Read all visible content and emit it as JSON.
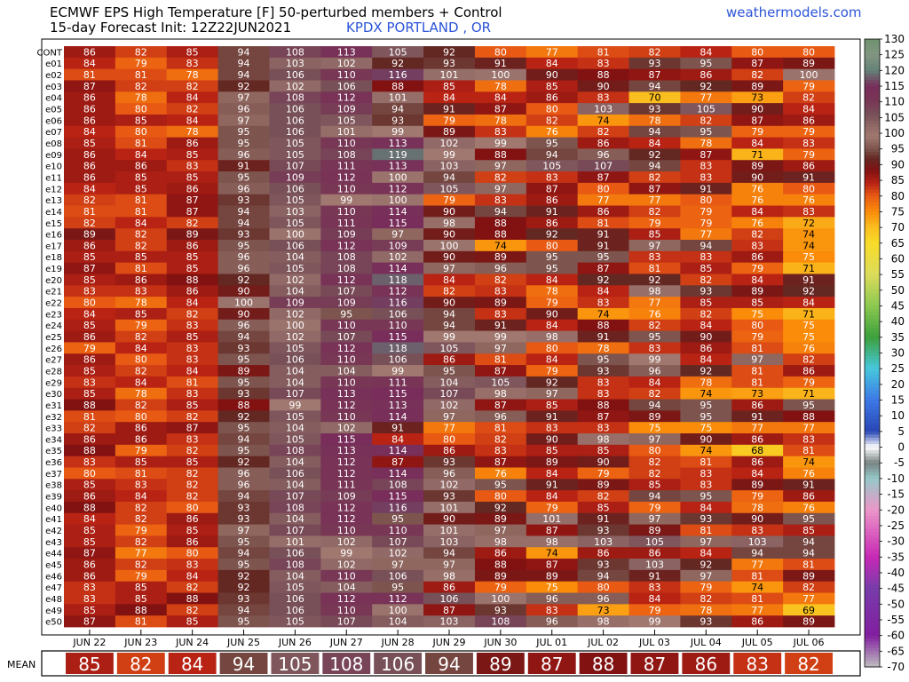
{
  "header": {
    "title_line1": "ECMWF EPS High Temperature [F]  50-perturbed members + Control",
    "title_line2": "15-day Forecast Init: 12Z22JUN2021",
    "location": "KPDX PORTLAND       , OR",
    "site": "weathermodels.com"
  },
  "chart_data": {
    "type": "heatmap",
    "title": "ECMWF EPS High Temperature [F]  50-perturbed members + Control",
    "subtitle": "15-day Forecast Init: 12Z22JUN2021",
    "columns": [
      "JUN 22",
      "JUN 23",
      "JUN 24",
      "JUN 25",
      "JUN 26",
      "JUN 27",
      "JUN 28",
      "JUN 29",
      "JUN 30",
      "JUL 01",
      "JUL 02",
      "JUL 03",
      "JUL 04",
      "JUL 05",
      "JUL 06"
    ],
    "rows": [
      "CONT",
      "e01",
      "e02",
      "e03",
      "e04",
      "e05",
      "e06",
      "e07",
      "e08",
      "e09",
      "e10",
      "e11",
      "e12",
      "e13",
      "e14",
      "e15",
      "e16",
      "e17",
      "e18",
      "e19",
      "e20",
      "e21",
      "e22",
      "e23",
      "e24",
      "e25",
      "e26",
      "e27",
      "e28",
      "e29",
      "e30",
      "e31",
      "e32",
      "e33",
      "e34",
      "e35",
      "e36",
      "e37",
      "e38",
      "e39",
      "e40",
      "e41",
      "e42",
      "e43",
      "e44",
      "e45",
      "e46",
      "e47",
      "e48",
      "e49",
      "e50"
    ],
    "values": [
      [
        86,
        82,
        85,
        94,
        108,
        113,
        105,
        92,
        80,
        77,
        81,
        82,
        84,
        80,
        80
      ],
      [
        84,
        79,
        83,
        94,
        103,
        102,
        92,
        93,
        91,
        84,
        83,
        93,
        95,
        87,
        89
      ],
      [
        81,
        81,
        78,
        94,
        106,
        110,
        116,
        101,
        100,
        90,
        88,
        87,
        86,
        82,
        100
      ],
      [
        87,
        82,
        82,
        92,
        102,
        106,
        88,
        85,
        78,
        85,
        90,
        94,
        92,
        89,
        79
      ],
      [
        86,
        78,
        84,
        97,
        108,
        112,
        101,
        84,
        84,
        86,
        83,
        70,
        77,
        73,
        82
      ],
      [
        86,
        80,
        82,
        96,
        106,
        109,
        94,
        91,
        87,
        80,
        103,
        93,
        105,
        90,
        84
      ],
      [
        86,
        85,
        84,
        97,
        106,
        105,
        93,
        79,
        78,
        82,
        74,
        78,
        82,
        87,
        86
      ],
      [
        84,
        80,
        78,
        95,
        106,
        101,
        99,
        89,
        83,
        76,
        82,
        94,
        95,
        79,
        79
      ],
      [
        85,
        81,
        86,
        95,
        105,
        110,
        113,
        102,
        99,
        95,
        86,
        84,
        78,
        84,
        83
      ],
      [
        86,
        84,
        85,
        96,
        105,
        108,
        119,
        99,
        88,
        94,
        96,
        92,
        87,
        71,
        79
      ],
      [
        86,
        86,
        83,
        91,
        107,
        111,
        113,
        103,
        97,
        105,
        107,
        94,
        83,
        89,
        86
      ],
      [
        86,
        85,
        85,
        95,
        109,
        112,
        100,
        94,
        82,
        83,
        87,
        82,
        83,
        90,
        91
      ],
      [
        84,
        85,
        86,
        96,
        106,
        110,
        112,
        105,
        97,
        87,
        80,
        87,
        91,
        76,
        80
      ],
      [
        82,
        81,
        87,
        93,
        105,
        99,
        100,
        79,
        83,
        86,
        77,
        77,
        80,
        76,
        76
      ],
      [
        81,
        81,
        87,
        94,
        103,
        110,
        114,
        90,
        94,
        91,
        86,
        82,
        79,
        84,
        83
      ],
      [
        82,
        84,
        82,
        94,
        105,
        111,
        115,
        98,
        88,
        86,
        81,
        79,
        79,
        76,
        72
      ],
      [
        89,
        82,
        89,
        93,
        100,
        109,
        97,
        90,
        88,
        92,
        91,
        85,
        77,
        82,
        74
      ],
      [
        86,
        82,
        86,
        95,
        106,
        112,
        109,
        100,
        74,
        80,
        91,
        97,
        94,
        83,
        74
      ],
      [
        85,
        85,
        85,
        96,
        104,
        108,
        102,
        90,
        89,
        95,
        95,
        83,
        83,
        86,
        75
      ],
      [
        87,
        81,
        85,
        96,
        105,
        108,
        114,
        97,
        96,
        95,
        87,
        81,
        85,
        79,
        71
      ],
      [
        85,
        86,
        88,
        92,
        102,
        112,
        118,
        84,
        82,
        84,
        92,
        92,
        82,
        84,
        91
      ],
      [
        83,
        83,
        86,
        90,
        104,
        107,
        112,
        82,
        83,
        78,
        84,
        98,
        93,
        89,
        92
      ],
      [
        80,
        78,
        84,
        100,
        109,
        109,
        116,
        90,
        89,
        79,
        83,
        77,
        85,
        85,
        84
      ],
      [
        84,
        85,
        82,
        90,
        102,
        95,
        106,
        94,
        83,
        90,
        74,
        76,
        82,
        75,
        71
      ],
      [
        85,
        79,
        83,
        96,
        100,
        110,
        110,
        94,
        91,
        84,
        88,
        82,
        84,
        80,
        75
      ],
      [
        86,
        82,
        85,
        94,
        102,
        107,
        115,
        99,
        99,
        98,
        91,
        95,
        90,
        79,
        75
      ],
      [
        79,
        84,
        83,
        93,
        105,
        112,
        118,
        105,
        97,
        80,
        78,
        83,
        86,
        81,
        76
      ],
      [
        86,
        80,
        83,
        95,
        106,
        110,
        106,
        86,
        81,
        84,
        95,
        99,
        84,
        97,
        82
      ],
      [
        85,
        82,
        84,
        89,
        104,
        104,
        99,
        95,
        87,
        79,
        93,
        96,
        92,
        81,
        86
      ],
      [
        83,
        84,
        81,
        95,
        104,
        110,
        111,
        104,
        105,
        92,
        83,
        84,
        78,
        81,
        79
      ],
      [
        85,
        78,
        83,
        93,
        107,
        113,
        115,
        107,
        98,
        97,
        83,
        82,
        74,
        73,
        71
      ],
      [
        88,
        82,
        85,
        88,
        99,
        112,
        113,
        102,
        87,
        85,
        88,
        94,
        95,
        86,
        95
      ],
      [
        81,
        80,
        82,
        92,
        105,
        110,
        114,
        97,
        96,
        91,
        87,
        89,
        95,
        91,
        88
      ],
      [
        82,
        86,
        87,
        95,
        104,
        102,
        91,
        77,
        81,
        83,
        83,
        75,
        75,
        77,
        77
      ],
      [
        86,
        86,
        83,
        94,
        105,
        115,
        84,
        80,
        82,
        90,
        98,
        97,
        90,
        86,
        83
      ],
      [
        88,
        79,
        82,
        95,
        108,
        113,
        114,
        86,
        83,
        85,
        85,
        80,
        74,
        68,
        81
      ],
      [
        83,
        85,
        85,
        92,
        104,
        112,
        87,
        93,
        87,
        89,
        90,
        82,
        81,
        86,
        74
      ],
      [
        80,
        81,
        82,
        96,
        106,
        112,
        114,
        96,
        76,
        84,
        79,
        82,
        83,
        84,
        76
      ],
      [
        85,
        83,
        82,
        96,
        104,
        111,
        108,
        102,
        95,
        91,
        89,
        85,
        83,
        89,
        91
      ],
      [
        86,
        84,
        82,
        94,
        107,
        109,
        115,
        93,
        80,
        84,
        82,
        94,
        95,
        79,
        86
      ],
      [
        88,
        82,
        80,
        93,
        108,
        112,
        116,
        101,
        92,
        79,
        85,
        79,
        84,
        78,
        76
      ],
      [
        84,
        82,
        86,
        93,
        104,
        112,
        95,
        90,
        89,
        101,
        91,
        97,
        93,
        90,
        95
      ],
      [
        85,
        79,
        85,
        97,
        107,
        110,
        110,
        101,
        97,
        87,
        93,
        89,
        81,
        83,
        85
      ],
      [
        85,
        82,
        86,
        95,
        101,
        102,
        107,
        103,
        98,
        98,
        103,
        105,
        97,
        103,
        94
      ],
      [
        87,
        77,
        80,
        94,
        106,
        99,
        102,
        94,
        86,
        74,
        86,
        86,
        84,
        94,
        94
      ],
      [
        86,
        82,
        83,
        95,
        108,
        102,
        97,
        97,
        88,
        87,
        93,
        103,
        92,
        77,
        81
      ],
      [
        86,
        79,
        84,
        92,
        104,
        110,
        106,
        98,
        89,
        89,
        94,
        91,
        97,
        81,
        89
      ],
      [
        83,
        85,
        82,
        92,
        105,
        104,
        95,
        86,
        79,
        75,
        80,
        83,
        79,
        74,
        82
      ],
      [
        83,
        85,
        88,
        93,
        106,
        112,
        112,
        106,
        100,
        96,
        96,
        84,
        82,
        81,
        77
      ],
      [
        85,
        88,
        82,
        94,
        106,
        110,
        100,
        87,
        93,
        83,
        73,
        79,
        78,
        77,
        69
      ],
      [
        87,
        81,
        85,
        95,
        105,
        107,
        104,
        103,
        108,
        96,
        98,
        99,
        93,
        86,
        89
      ]
    ],
    "mean_label": "MEAN",
    "mean": [
      85,
      82,
      84,
      94,
      105,
      108,
      106,
      94,
      89,
      87,
      88,
      87,
      86,
      83,
      82
    ],
    "colorbar": {
      "ticks": [
        130,
        125,
        120,
        115,
        110,
        105,
        100,
        95,
        90,
        85,
        80,
        75,
        70,
        65,
        60,
        55,
        50,
        45,
        40,
        35,
        30,
        25,
        20,
        15,
        10,
        5,
        0,
        -5,
        -10,
        -15,
        -20,
        -25,
        -30,
        -35,
        -40,
        -45,
        -50,
        -55,
        -60,
        -65,
        -70
      ],
      "range": [
        -70,
        130
      ]
    }
  }
}
